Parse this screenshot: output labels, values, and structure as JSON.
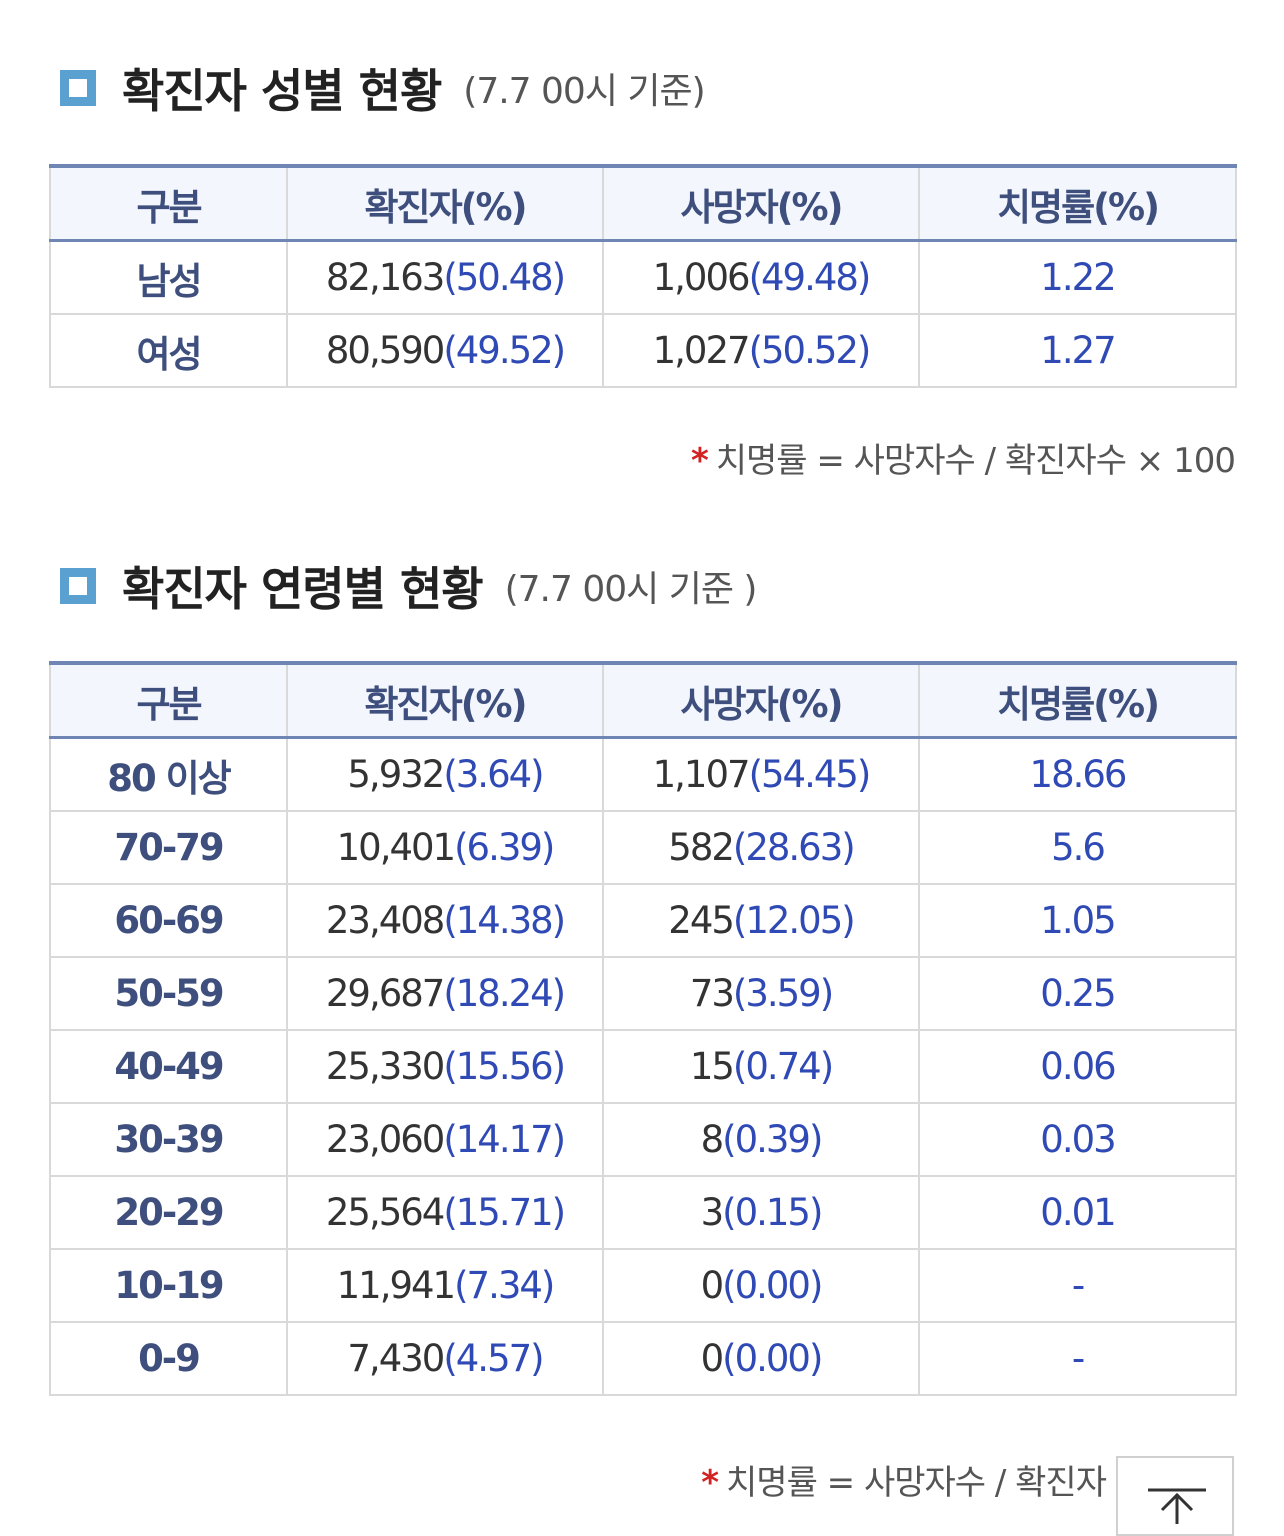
{
  "gender_section": {
    "title": "확진자 성별 현황",
    "subtitle": "(7.7 00시 기준)",
    "headers": [
      "구분",
      "확진자(%)",
      "사망자(%)",
      "치명률(%)"
    ],
    "rows": [
      {
        "label": "남성",
        "confirmed": "82,163",
        "confirmed_pct": "(50.48)",
        "deaths": "1,006",
        "deaths_pct": "(49.48)",
        "fatality": "1.22"
      },
      {
        "label": "여성",
        "confirmed": "80,590",
        "confirmed_pct": "(49.52)",
        "deaths": "1,027",
        "deaths_pct": "(50.52)",
        "fatality": "1.27"
      }
    ],
    "note_star": "*",
    "note": "치명률 = 사망자수 / 확진자수 × 100"
  },
  "age_section": {
    "title": "확진자 연령별 현황",
    "subtitle": "(7.7 00시 기준 )",
    "headers": [
      "구분",
      "확진자(%)",
      "사망자(%)",
      "치명률(%)"
    ],
    "rows": [
      {
        "label": "80 이상",
        "confirmed": "5,932",
        "confirmed_pct": "(3.64)",
        "deaths": "1,107",
        "deaths_pct": "(54.45)",
        "fatality": "18.66"
      },
      {
        "label": "70-79",
        "confirmed": "10,401",
        "confirmed_pct": "(6.39)",
        "deaths": "582",
        "deaths_pct": "(28.63)",
        "fatality": "5.6"
      },
      {
        "label": "60-69",
        "confirmed": "23,408",
        "confirmed_pct": "(14.38)",
        "deaths": "245",
        "deaths_pct": "(12.05)",
        "fatality": "1.05"
      },
      {
        "label": "50-59",
        "confirmed": "29,687",
        "confirmed_pct": "(18.24)",
        "deaths": "73",
        "deaths_pct": "(3.59)",
        "fatality": "0.25"
      },
      {
        "label": "40-49",
        "confirmed": "25,330",
        "confirmed_pct": "(15.56)",
        "deaths": "15",
        "deaths_pct": "(0.74)",
        "fatality": "0.06"
      },
      {
        "label": "30-39",
        "confirmed": "23,060",
        "confirmed_pct": "(14.17)",
        "deaths": "8",
        "deaths_pct": "(0.39)",
        "fatality": "0.03"
      },
      {
        "label": "20-29",
        "confirmed": "25,564",
        "confirmed_pct": "(15.71)",
        "deaths": "3",
        "deaths_pct": "(0.15)",
        "fatality": "0.01"
      },
      {
        "label": "10-19",
        "confirmed": "11,941",
        "confirmed_pct": "(7.34)",
        "deaths": "0",
        "deaths_pct": "(0.00)",
        "fatality": "-"
      },
      {
        "label": "0-9",
        "confirmed": "7,430",
        "confirmed_pct": "(4.57)",
        "deaths": "0",
        "deaths_pct": "(0.00)",
        "fatality": "-"
      }
    ],
    "note_star": "*",
    "note": "치명률 = 사망자수 / 확진자"
  },
  "scroll_top": {
    "icon": "arrow-up-icon"
  },
  "colors": {
    "marker": "#5aa0d0",
    "table_border_top": "#6f86b5",
    "header_text": "#3e4f7e",
    "header_bg": "#f3f6fc",
    "percent_text": "#2f49b5",
    "note_star": "#d22222"
  }
}
